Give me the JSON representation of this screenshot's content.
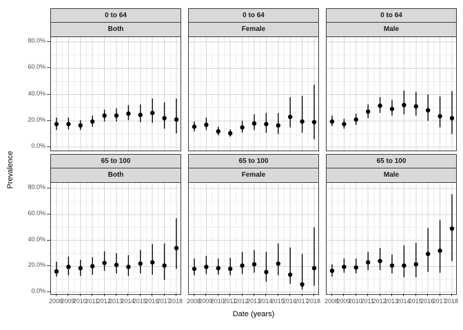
{
  "y_axis": {
    "title": "Prevalence",
    "range": [
      0,
      80
    ],
    "ticks": [
      {
        "value": 0,
        "label": "0.0%"
      },
      {
        "value": 20,
        "label": "20.0%"
      },
      {
        "value": 40,
        "label": "40.0%"
      },
      {
        "value": 60,
        "label": "60.0%"
      },
      {
        "value": 80,
        "label": "80.0%"
      }
    ],
    "minor": [
      10,
      30,
      50,
      70
    ]
  },
  "x_axis": {
    "title": "Date (years)",
    "ticks": [
      "2008",
      "2009",
      "2010",
      "2011",
      "2012",
      "2013",
      "2014",
      "2015",
      "2016",
      "2017",
      "2018"
    ]
  },
  "chart_data": {
    "type": "scatter",
    "style": "pointrange",
    "grid": "on",
    "point_color": "#000000",
    "facet_rows": [
      "0 to 64",
      "65 to 100"
    ],
    "facet_cols": [
      "Both",
      "Female",
      "Male"
    ],
    "x": [
      2008,
      2009,
      2010,
      2011,
      2012,
      2013,
      2014,
      2015,
      2016,
      2017,
      2018
    ],
    "ylim": [
      0,
      80
    ],
    "units": "percent",
    "panels": [
      {
        "age_group": "0 to 64",
        "sex": "Both",
        "estimate": [
          17.5,
          17.5,
          16.5,
          19.5,
          24,
          24,
          25.5,
          24.5,
          26,
          22,
          21
        ],
        "lower": [
          13,
          13.5,
          13,
          15.5,
          19.5,
          19.5,
          20.5,
          19,
          18.5,
          14,
          10.5
        ],
        "upper": [
          22.5,
          22.5,
          20.5,
          24,
          28.5,
          29.5,
          32,
          32.5,
          37,
          34,
          37
        ]
      },
      {
        "age_group": "0 to 64",
        "sex": "Female",
        "estimate": [
          15.5,
          17,
          12,
          10.5,
          15,
          18,
          17.5,
          16.5,
          23,
          19.5,
          19
        ],
        "lower": [
          12,
          13,
          9,
          8,
          11,
          13,
          11,
          10,
          15,
          11,
          6
        ],
        "upper": [
          19.5,
          22.5,
          15.5,
          13.5,
          20,
          25,
          26,
          26,
          38,
          39,
          47.5
        ]
      },
      {
        "age_group": "0 to 64",
        "sex": "Male",
        "estimate": [
          19.5,
          17.5,
          21,
          27,
          31.5,
          29,
          32,
          31,
          28,
          23.5,
          22
        ],
        "lower": [
          16,
          14,
          17,
          22,
          26,
          24,
          25,
          24,
          20,
          15,
          10
        ],
        "upper": [
          24,
          21.5,
          25.5,
          32.5,
          38,
          36,
          43,
          42,
          40,
          38.5,
          42.5
        ]
      },
      {
        "age_group": "65 to 100",
        "sex": "Both",
        "estimate": [
          16,
          19.5,
          18.5,
          20,
          22.5,
          21,
          19.5,
          22,
          23,
          20.5,
          34
        ],
        "lower": [
          12,
          13,
          12.5,
          13.5,
          16.5,
          14.5,
          12.5,
          14.5,
          13.5,
          9.5,
          18
        ],
        "upper": [
          23.5,
          27.5,
          25,
          27,
          31.5,
          30,
          28.5,
          32.5,
          37,
          37.5,
          57
        ]
      },
      {
        "age_group": "65 to 100",
        "sex": "Female",
        "estimate": [
          18,
          19.5,
          18.5,
          18,
          20.5,
          21.5,
          15.5,
          22,
          13.5,
          6,
          18.5
        ],
        "lower": [
          13,
          14,
          13.5,
          13,
          14,
          15,
          8,
          13,
          6.5,
          2,
          5
        ],
        "upper": [
          26,
          28,
          26,
          26.5,
          31,
          32.5,
          31,
          37.5,
          34.5,
          29.5,
          50
        ]
      },
      {
        "age_group": "65 to 100",
        "sex": "Male",
        "estimate": [
          16.5,
          19.5,
          19,
          23,
          24,
          20.5,
          20.5,
          21.5,
          29.5,
          32,
          49
        ],
        "lower": [
          12,
          15,
          14.5,
          17,
          17,
          14.5,
          11.5,
          11.5,
          15.5,
          15,
          24
        ],
        "upper": [
          21.5,
          26,
          26,
          31,
          34,
          29,
          36,
          38,
          49.5,
          55.5,
          75.5
        ]
      }
    ]
  }
}
